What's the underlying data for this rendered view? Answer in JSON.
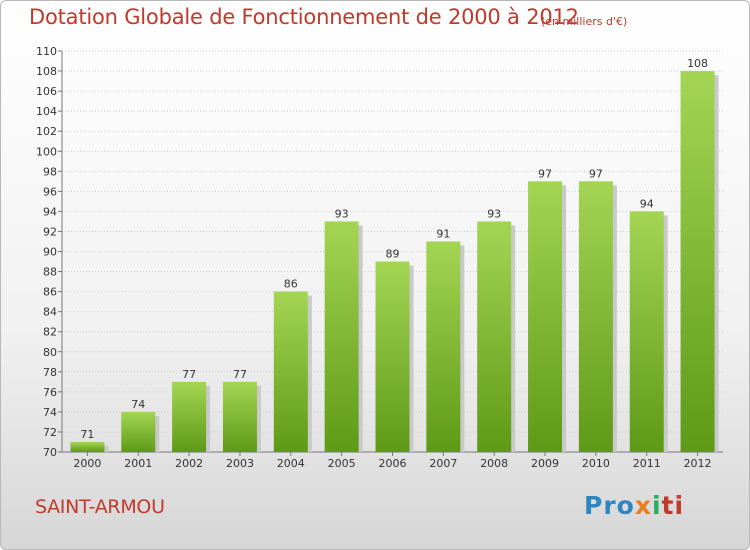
{
  "title": "Dotation Globale de Fonctionnement de 2000 à 2012",
  "unit": "(en milliers d'€)",
  "commune": "SAINT-ARMOU",
  "brand": "Proxiti",
  "colors": {
    "title": "#c0392b",
    "bar_light": "#9fd24d",
    "bar_dark": "#5e9a16"
  },
  "chart_data": {
    "type": "bar",
    "categories": [
      "2000",
      "2001",
      "2002",
      "2003",
      "2004",
      "2005",
      "2006",
      "2007",
      "2008",
      "2009",
      "2010",
      "2011",
      "2012"
    ],
    "values": [
      71,
      74,
      77,
      77,
      86,
      93,
      89,
      91,
      93,
      97,
      97,
      94,
      108
    ],
    "ylim": [
      70,
      110
    ],
    "ytick_step": 2,
    "grid": true,
    "title": "Dotation Globale de Fonctionnement de 2000 à 2012",
    "xlabel": "",
    "ylabel": ""
  }
}
